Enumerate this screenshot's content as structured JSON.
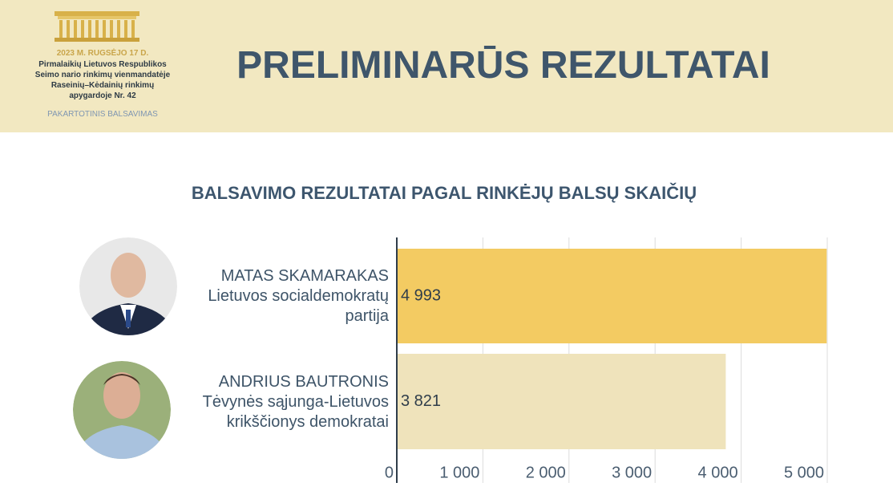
{
  "header": {
    "date": "2023 M. RUGSĖJO 17 D.",
    "election": "Pirmalaikių Lietuvos Respublikos Seimo nario rinkimų vienmandatėje Raseinių–Kėdainių rinkimų apygardoje Nr. 42",
    "round": "PAKARTOTINIS BALSAVIMAS",
    "title": "PRELIMINARŪS REZULTATAI"
  },
  "chart_data": {
    "type": "bar",
    "orientation": "horizontal",
    "title": "BALSAVIMO REZULTATAI PAGAL RINKĖJŲ BALSŲ SKAIČIŲ",
    "categories": [
      "MATAS SKAMARAKAS",
      "ANDRIUS BAUTRONIS"
    ],
    "parties": [
      "Lietuvos socialdemokratų partija",
      "Tėvynės sąjunga-Lietuvos krikščionys demokratai"
    ],
    "values": [
      4993,
      3821
    ],
    "value_labels": [
      "4 993",
      "3 821"
    ],
    "colors": [
      "#f3cb62",
      "#efe3bb"
    ],
    "xlim": [
      0,
      5000
    ],
    "xticks": [
      0,
      {
        "value": 1000,
        "label": "1 000"
      },
      {
        "value": 2000,
        "label": "2 000"
      },
      {
        "value": 3000,
        "label": "3 000"
      },
      {
        "value": 4000,
        "label": "4 000"
      },
      {
        "value": 5000,
        "label": "5 000"
      }
    ],
    "grid": true
  }
}
